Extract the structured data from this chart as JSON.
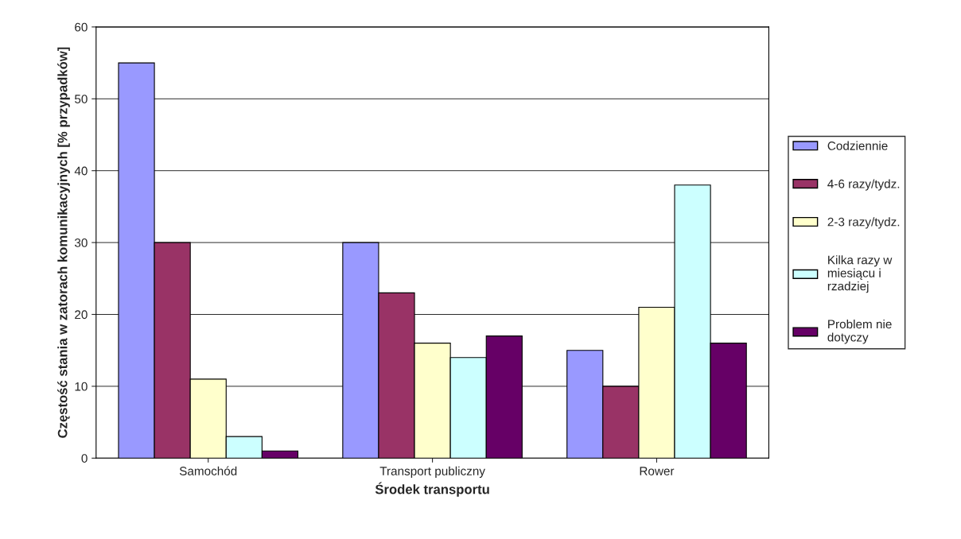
{
  "chart_data": {
    "type": "bar",
    "xlabel": "Środek transportu",
    "ylabel": "Częstość stania w zatorach komunikacyjnych [% przypadków]",
    "categories": [
      "Samochód",
      "Transport publiczny",
      "Rower"
    ],
    "series": [
      {
        "name": "Codziennie",
        "color": "#9999ff",
        "values": [
          55,
          30,
          15
        ]
      },
      {
        "name": "4-6 razy/tydz.",
        "color": "#993366",
        "values": [
          30,
          23,
          10
        ]
      },
      {
        "name": "2-3 razy/tydz.",
        "color": "#ffffcc",
        "values": [
          11,
          16,
          21
        ]
      },
      {
        "name": "Kilka razy w miesiącu i rzadziej",
        "color": "#ccffff",
        "values": [
          3,
          14,
          38
        ]
      },
      {
        "name": "Problem nie dotyczy",
        "color": "#660066",
        "values": [
          1,
          17,
          16
        ]
      }
    ],
    "ylim": [
      0,
      60
    ],
    "yticks": [
      0,
      10,
      20,
      30,
      40,
      50,
      60
    ],
    "grid": "y",
    "legend": "right"
  }
}
